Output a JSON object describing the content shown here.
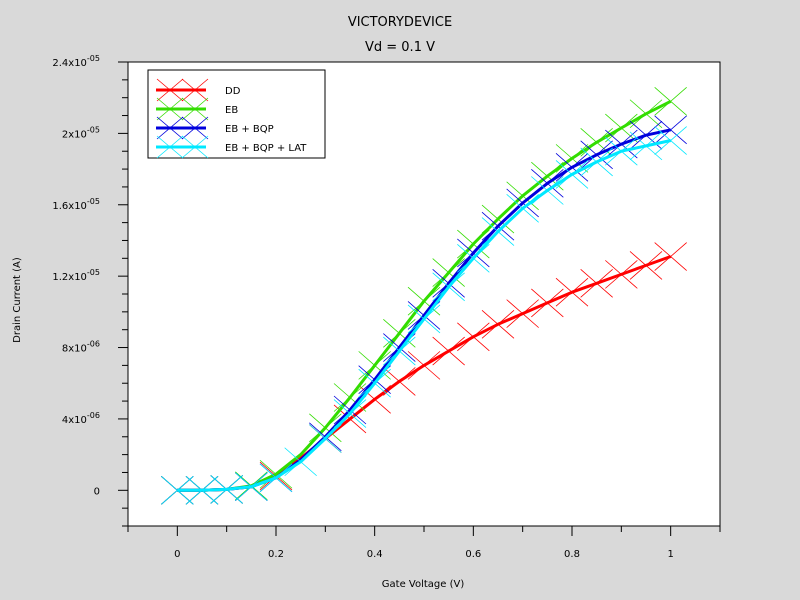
{
  "chart_data": {
    "type": "line",
    "title": "VICTORYDEVICE",
    "subtitle": "Vd = 0.1 V",
    "xlabel": "Gate Voltage (V)",
    "ylabel": "Drain Current (A)",
    "xlim": [
      -0.1,
      1.1
    ],
    "ylim": [
      -2e-06,
      2.4e-05
    ],
    "x_ticks": [
      {
        "value": 0,
        "label": "0"
      },
      {
        "value": 0.2,
        "label": "0.2"
      },
      {
        "value": 0.4,
        "label": "0.4"
      },
      {
        "value": 0.6,
        "label": "0.6"
      },
      {
        "value": 0.8,
        "label": "0.8"
      },
      {
        "value": 1.0,
        "label": "1"
      }
    ],
    "y_ticks": [
      {
        "value": 0,
        "mantissa": "0",
        "exp": ""
      },
      {
        "value": 4e-06,
        "mantissa": "4x10",
        "exp": "-06"
      },
      {
        "value": 8e-06,
        "mantissa": "8x10",
        "exp": "-06"
      },
      {
        "value": 1.2e-05,
        "mantissa": "1.2x10",
        "exp": "-05"
      },
      {
        "value": 1.6e-05,
        "mantissa": "1.6x10",
        "exp": "-05"
      },
      {
        "value": 2e-05,
        "mantissa": "2x10",
        "exp": "-05"
      },
      {
        "value": 2.4e-05,
        "mantissa": "2.4x10",
        "exp": "-05"
      }
    ],
    "legend_position": "top-left",
    "grid": false,
    "x": [
      0,
      0.05,
      0.1,
      0.15,
      0.2,
      0.25,
      0.3,
      0.35,
      0.4,
      0.45,
      0.5,
      0.55,
      0.6,
      0.65,
      0.7,
      0.75,
      0.8,
      0.85,
      0.9,
      0.95,
      1.0
    ],
    "series": [
      {
        "name": "DD",
        "color": "#ff0000",
        "values": [
          0,
          0,
          5e-08,
          2e-07,
          8e-07,
          1.8e-06,
          2.9e-06,
          4e-06,
          5.1e-06,
          6.1e-06,
          7e-06,
          7.8e-06,
          8.6e-06,
          9.3e-06,
          9.9e-06,
          1.05e-05,
          1.11e-05,
          1.16e-05,
          1.21e-05,
          1.26e-05,
          1.31e-05
        ]
      },
      {
        "name": "EB",
        "color": "#33dd00",
        "values": [
          0,
          0,
          5e-08,
          2.5e-07,
          9e-07,
          2e-06,
          3.5e-06,
          5.2e-06,
          7e-06,
          8.8e-06,
          1.06e-05,
          1.22e-05,
          1.38e-05,
          1.52e-05,
          1.65e-05,
          1.76e-05,
          1.86e-05,
          1.95e-05,
          2.03e-05,
          2.11e-05,
          2.18e-05
        ]
      },
      {
        "name": "EB + BQP",
        "color": "#0000dd",
        "values": [
          0,
          0,
          5e-08,
          2e-07,
          7e-07,
          1.7e-06,
          3e-06,
          4.5e-06,
          6.2e-06,
          8e-06,
          9.8e-06,
          1.16e-05,
          1.33e-05,
          1.48e-05,
          1.61e-05,
          1.72e-05,
          1.81e-05,
          1.88e-05,
          1.94e-05,
          1.99e-05,
          2.02e-05
        ]
      },
      {
        "name": "EB + BQP + LAT",
        "color": "#00e8ff",
        "values": [
          0,
          0,
          5e-08,
          2e-07,
          7e-07,
          1.6e-06,
          2.9e-06,
          4.3e-06,
          6e-06,
          7.8e-06,
          9.6e-06,
          1.14e-05,
          1.3e-05,
          1.45e-05,
          1.58e-05,
          1.68e-05,
          1.77e-05,
          1.84e-05,
          1.9e-05,
          1.93e-05,
          1.96e-05
        ]
      }
    ]
  }
}
